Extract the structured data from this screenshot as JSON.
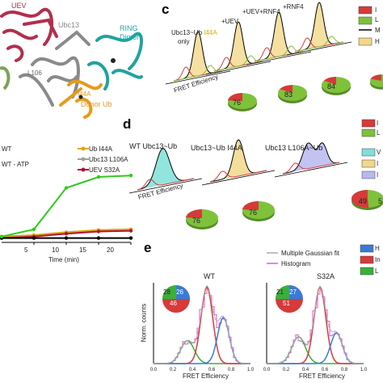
{
  "panel_a": {
    "labels": {
      "uev": "UEV",
      "ubc13": "Ubc13",
      "ring": "RING",
      "dimer": "Dimer",
      "l106": "L106",
      "i44a": "I44A",
      "donor": "Donor Ub"
    },
    "colors": {
      "uev": "#b0304d",
      "ubc13": "#8a8a8a",
      "ring": "#1fa3a0",
      "donor": "#e59a1d",
      "green": "#7aa35a"
    }
  },
  "panel_b": {
    "legend": [
      "WT",
      "WT - ATP",
      "Ub I44A",
      "Ubc13 L106A",
      "UEV S32A"
    ],
    "legend_colors": [
      "#2ecc1a",
      "#000000",
      "#e0a800",
      "#a0a0a0",
      "#b0103a"
    ],
    "xlabel": "Time (min)",
    "xticks": [
      "5",
      "10",
      "15",
      "20"
    ]
  },
  "panel_c": {
    "label": "c",
    "top_labels": [
      "+UEV",
      "+UEV+RNF4",
      "+RNF4"
    ],
    "left_label_1": "Ubc13~Ub ",
    "left_label_2": "I44A",
    "left_label_3": "only",
    "xlabel": "FRET Efficiency",
    "xticks": [
      "0.2",
      "0.4",
      "0.6",
      "0.8",
      "1.0"
    ],
    "pies": [
      76,
      83,
      84
    ],
    "legend_colors": [
      "#d63a3a",
      "#7ec23a",
      "#000000",
      "#f2d88a"
    ],
    "legend_glyph": [
      "I",
      "L",
      "M",
      "H"
    ]
  },
  "panel_d": {
    "label": "d",
    "titles": [
      "WT Ubc13~Ub",
      "Ubc13~Ub I44A",
      "Ubc13 L106A~Ub"
    ],
    "xlabel": "FRET Efficiency",
    "xticks": [
      "0.2",
      "0.4",
      "0.6",
      "0.8",
      "1.0"
    ],
    "pies": [
      76,
      76,
      49
    ],
    "pie_small": [
      "5"
    ],
    "legend_glyph": [
      "I",
      "L",
      "V",
      "I",
      "I"
    ]
  },
  "panel_e": {
    "label": "e",
    "legend": [
      "Multiple Gaussian fit",
      "Histogram"
    ],
    "legend_right": [
      "H",
      "In",
      "L"
    ],
    "plots": [
      {
        "title": "WT",
        "pie": [
          "28",
          "26",
          "46"
        ]
      },
      {
        "title": "S32A",
        "pie": [
          "21",
          "27",
          "51"
        ]
      }
    ],
    "ylabel": "Norm. counts",
    "xlabel": "FRET Efficiency",
    "xticks": [
      "0.0",
      "0.2",
      "0.4",
      "0.6",
      "0.8",
      "1.0"
    ]
  }
}
